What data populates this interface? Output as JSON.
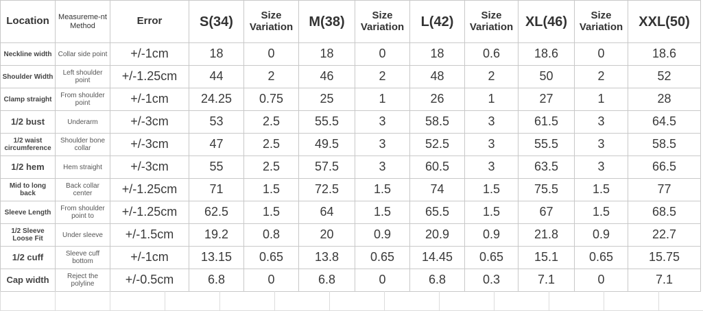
{
  "table": {
    "header": [
      "Location",
      "Measureme-nt Method",
      "Error",
      "S(34)",
      "Size Variation",
      "M(38)",
      "Size Variation",
      "L(42)",
      "Size Variation",
      "XL(46)",
      "Size Variation",
      "XXL(50)"
    ],
    "rows": [
      [
        "Neckline width",
        "Collar side point",
        "+/-1cm",
        "18",
        "0",
        "18",
        "0",
        "18",
        "0.6",
        "18.6",
        "0",
        "18.6"
      ],
      [
        "Shoulder Width",
        "Left shoulder point",
        "+/-1.25cm",
        "44",
        "2",
        "46",
        "2",
        "48",
        "2",
        "50",
        "2",
        "52"
      ],
      [
        "Clamp straight",
        "From shoulder point",
        "+/-1cm",
        "24.25",
        "0.75",
        "25",
        "1",
        "26",
        "1",
        "27",
        "1",
        "28"
      ],
      [
        "1/2 bust",
        "Underarm",
        "+/-3cm",
        "53",
        "2.5",
        "55.5",
        "3",
        "58.5",
        "3",
        "61.5",
        "3",
        "64.5"
      ],
      [
        "1/2 waist circumference",
        "Shoulder bone collar",
        "+/-3cm",
        "47",
        "2.5",
        "49.5",
        "3",
        "52.5",
        "3",
        "55.5",
        "3",
        "58.5"
      ],
      [
        "1/2 hem",
        "Hem straight",
        "+/-3cm",
        "55",
        "2.5",
        "57.5",
        "3",
        "60.5",
        "3",
        "63.5",
        "3",
        "66.5"
      ],
      [
        "Mid to long back",
        "Back collar center",
        "+/-1.25cm",
        "71",
        "1.5",
        "72.5",
        "1.5",
        "74",
        "1.5",
        "75.5",
        "1.5",
        "77"
      ],
      [
        "Sleeve Length",
        "From shoulder point to",
        "+/-1.25cm",
        "62.5",
        "1.5",
        "64",
        "1.5",
        "65.5",
        "1.5",
        "67",
        "1.5",
        "68.5"
      ],
      [
        "1/2 Sleeve Loose Fit",
        "Under sleeve",
        "+/-1.5cm",
        "19.2",
        "0.8",
        "20",
        "0.9",
        "20.9",
        "0.9",
        "21.8",
        "0.9",
        "22.7"
      ],
      [
        "1/2 cuff",
        "Sleeve cuff bottom",
        "+/-1cm",
        "13.15",
        "0.65",
        "13.8",
        "0.65",
        "14.45",
        "0.65",
        "15.1",
        "0.65",
        "15.75"
      ],
      [
        "Cap width",
        "Reject the polyline",
        "+/-0.5cm",
        "6.8",
        "0",
        "6.8",
        "0",
        "6.8",
        "0.3",
        "7.1",
        "0",
        "7.1"
      ]
    ]
  }
}
